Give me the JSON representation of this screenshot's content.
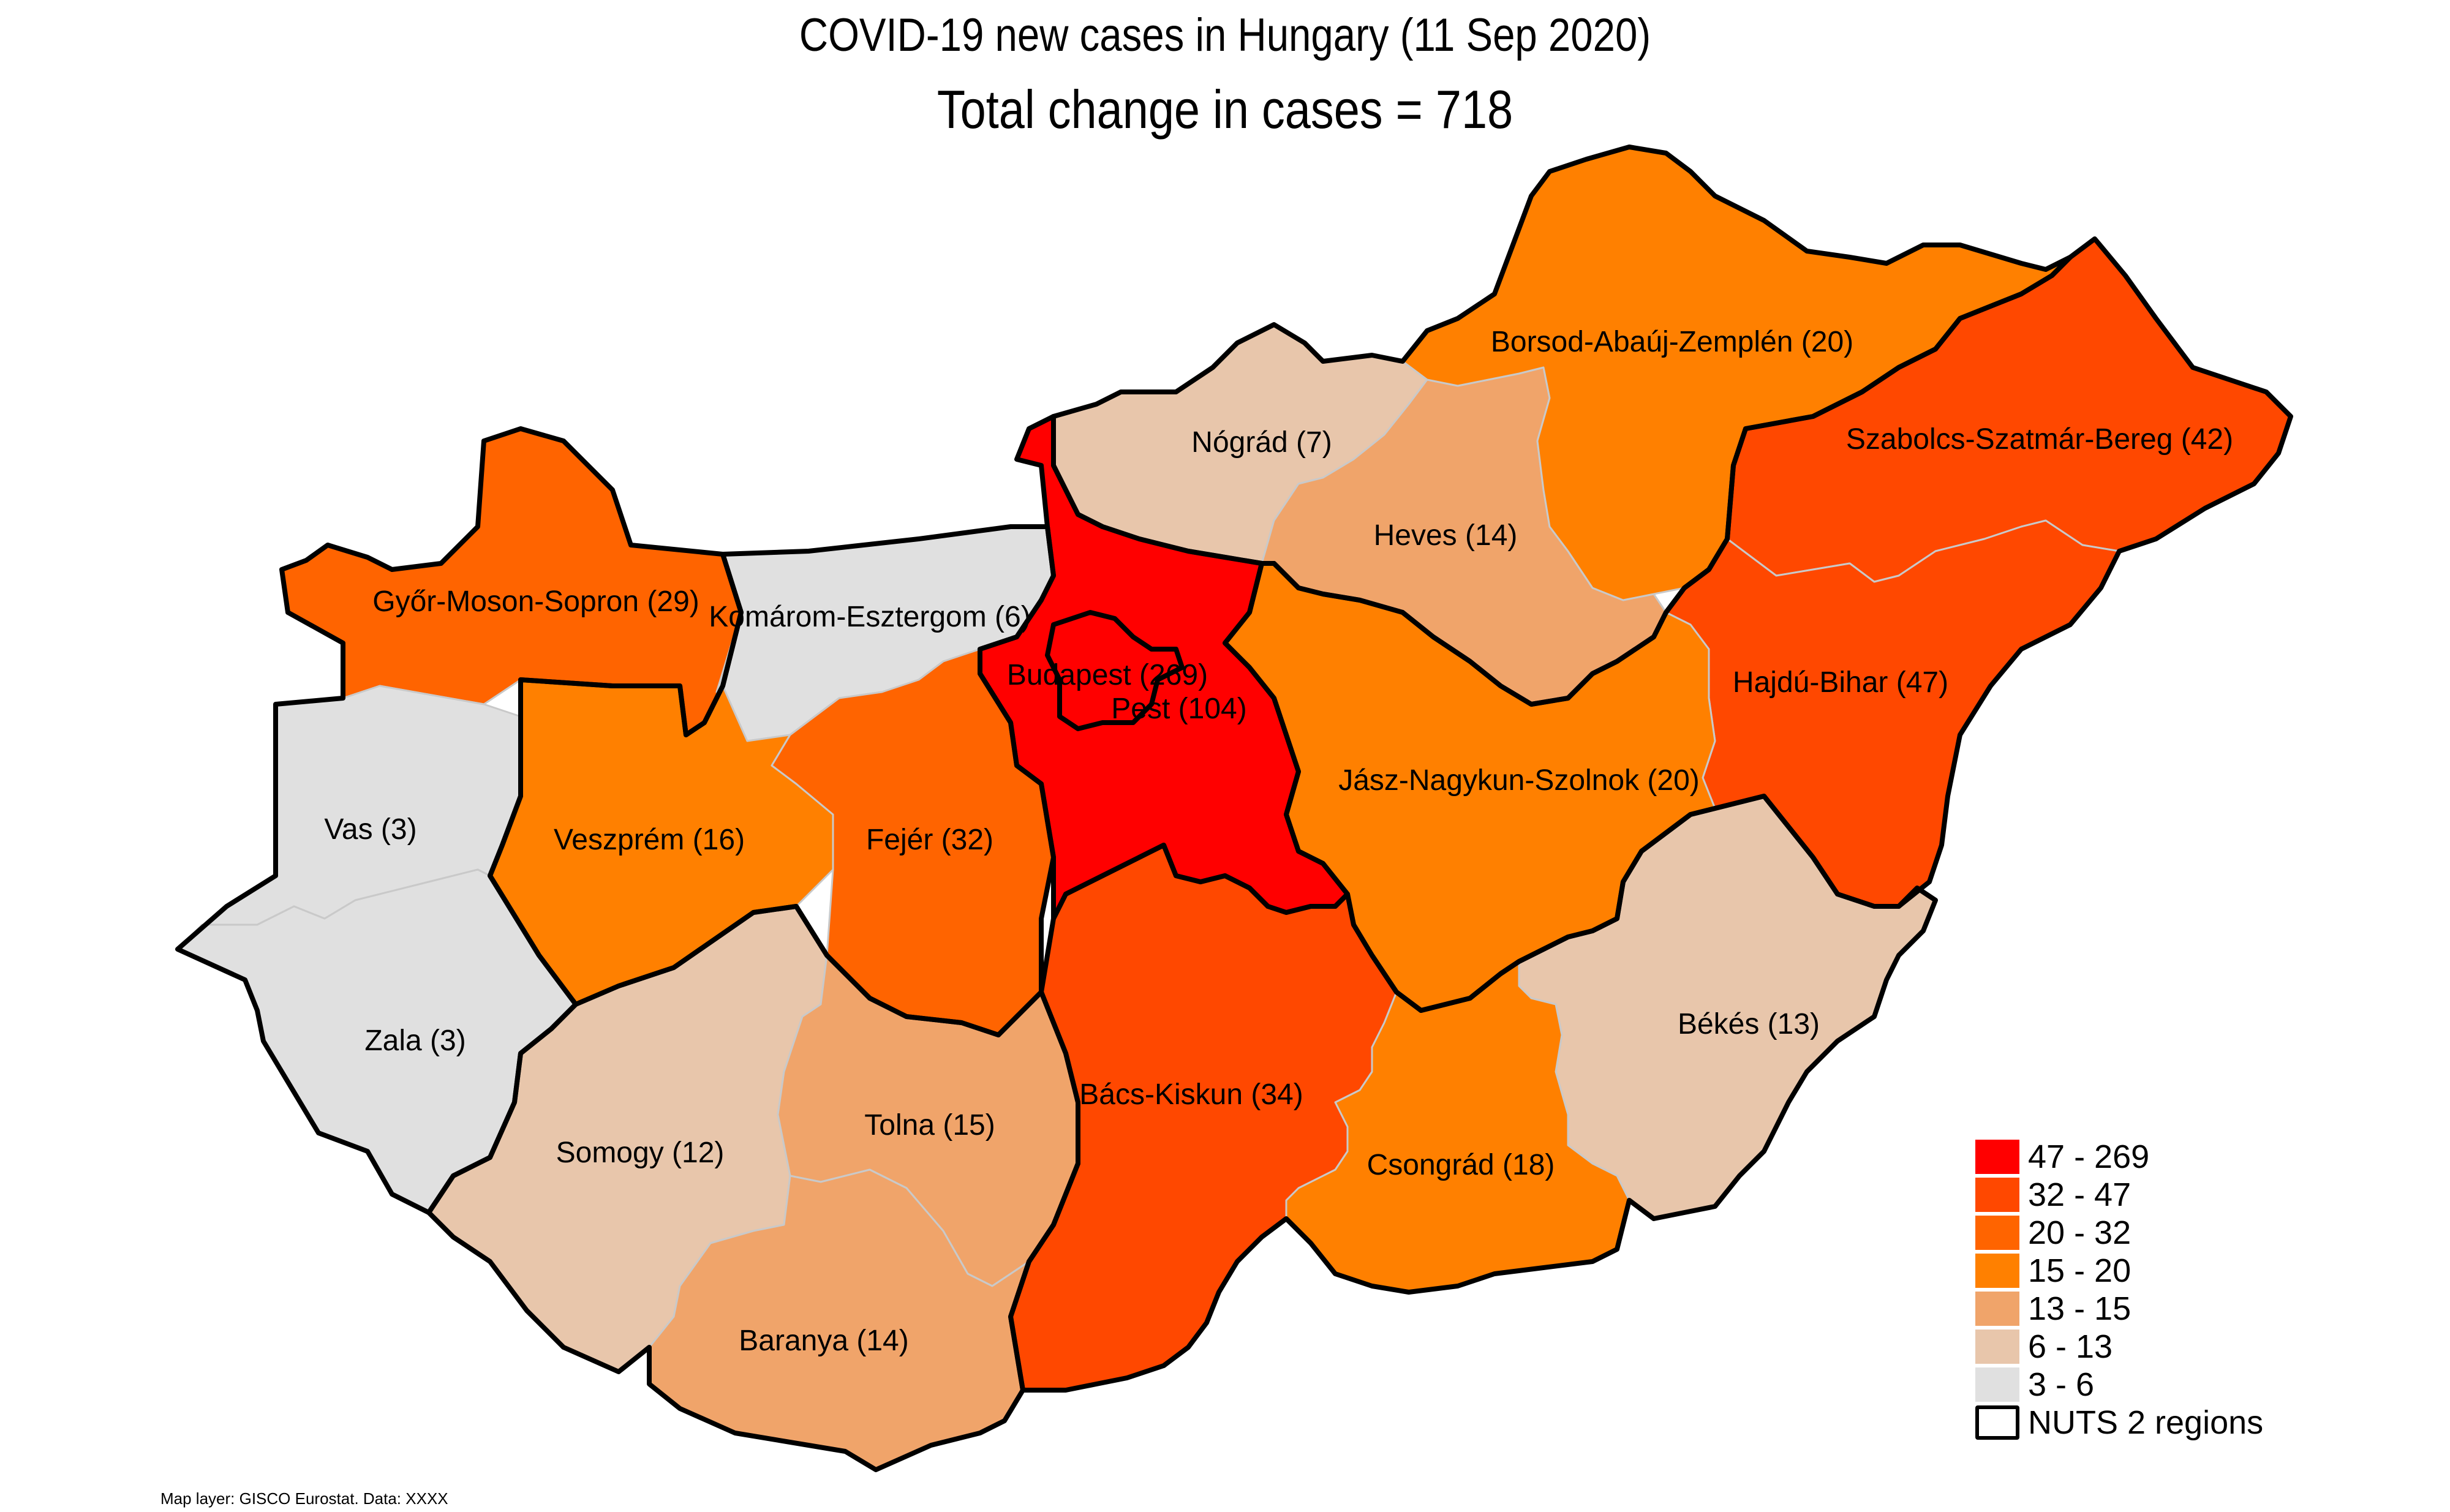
{
  "title": "COVID-19 new cases in Hungary (11 Sep 2020)",
  "subtitle": "Total change in cases  = 718",
  "credit": "Map layer: GISCO Eurostat. Data: XXXX",
  "regions": [
    {
      "id": "gyor",
      "label": "Győr-Moson-Sopron (29)",
      "value": 29,
      "color": "#ff6400"
    },
    {
      "id": "komarom",
      "label": "Komárom-Esztergom (6)",
      "value": 6,
      "color": "#e0e0e0"
    },
    {
      "id": "vas",
      "label": "Vas (3)",
      "value": 3,
      "color": "#e0e0e0"
    },
    {
      "id": "zala",
      "label": "Zala (3)",
      "value": 3,
      "color": "#e0e0e0"
    },
    {
      "id": "veszprem",
      "label": "Veszprém (16)",
      "value": 16,
      "color": "#ff8000"
    },
    {
      "id": "fejer",
      "label": "Fejér (32)",
      "value": 32,
      "color": "#ff6400"
    },
    {
      "id": "somogy",
      "label": "Somogy (12)",
      "value": 12,
      "color": "#e8c6ab"
    },
    {
      "id": "tolna",
      "label": "Tolna (15)",
      "value": 15,
      "color": "#f0a46a"
    },
    {
      "id": "baranya",
      "label": "Baranya (14)",
      "value": 14,
      "color": "#f0a46a"
    },
    {
      "id": "nograd",
      "label": "Nógrád (7)",
      "value": 7,
      "color": "#e8c6ab"
    },
    {
      "id": "heves",
      "label": "Heves (14)",
      "value": 14,
      "color": "#f0a46a"
    },
    {
      "id": "borsod",
      "label": "Borsod-Abaúj-Zemplén (20)",
      "value": 20,
      "color": "#ff8000"
    },
    {
      "id": "szabolcs",
      "label": "Szabolcs-Szatmár-Bereg (42)",
      "value": 42,
      "color": "#ff4800"
    },
    {
      "id": "hajdu",
      "label": "Hajdú-Bihar (47)",
      "value": 47,
      "color": "#ff4800"
    },
    {
      "id": "jasz",
      "label": "Jász-Nagykun-Szolnok (20)",
      "value": 20,
      "color": "#ff8000"
    },
    {
      "id": "bekes",
      "label": "Békés (13)",
      "value": 13,
      "color": "#e8c6ab"
    },
    {
      "id": "csongrad",
      "label": "Csongrád (18)",
      "value": 18,
      "color": "#ff8000"
    },
    {
      "id": "bacs",
      "label": "Bács-Kiskun (34)",
      "value": 34,
      "color": "#ff4800"
    },
    {
      "id": "pest",
      "label": "Pest (104)",
      "value": 104,
      "color": "#ff0000"
    },
    {
      "id": "budapest",
      "label": "Budapest (269)",
      "value": 269,
      "color": "#ff0000"
    }
  ],
  "legend": [
    {
      "label": "47 - 269",
      "color": "#ff0000"
    },
    {
      "label": "32 - 47",
      "color": "#ff4800"
    },
    {
      "label": "20 - 32",
      "color": "#ff6400"
    },
    {
      "label": "15 - 20",
      "color": "#ff8000"
    },
    {
      "label": "13 - 15",
      "color": "#f0a46a"
    },
    {
      "label": "6 - 13",
      "color": "#e8c6ab"
    },
    {
      "label": "3 - 6",
      "color": "#e0e0e0"
    }
  ],
  "legend_outline_label": "NUTS 2 regions"
}
